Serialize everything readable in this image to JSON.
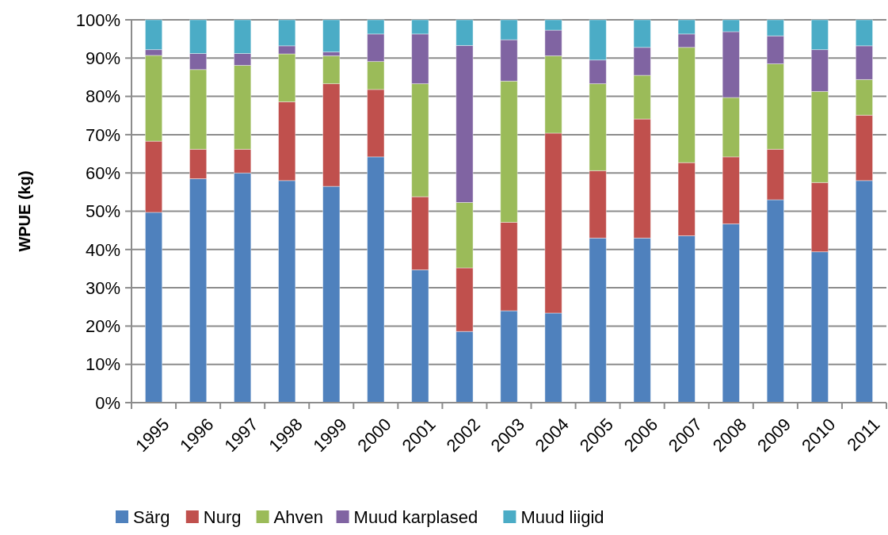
{
  "chart_data": {
    "type": "bar",
    "stacked": true,
    "ylabel": "WPUE (kg)",
    "categories": [
      "1995",
      "1996",
      "1997",
      "1998",
      "1999",
      "2000",
      "2001",
      "2002",
      "2003",
      "2004",
      "2005",
      "2006",
      "2007",
      "2008",
      "2009",
      "2010",
      "2011"
    ],
    "ylim": [
      0,
      100
    ],
    "yticks": [
      {
        "value": 0,
        "label": "0%"
      },
      {
        "value": 10,
        "label": "10%"
      },
      {
        "value": 20,
        "label": "20%"
      },
      {
        "value": 30,
        "label": "30%"
      },
      {
        "value": 40,
        "label": "40%"
      },
      {
        "value": 50,
        "label": "50%"
      },
      {
        "value": 60,
        "label": "60%"
      },
      {
        "value": 70,
        "label": "70%"
      },
      {
        "value": 80,
        "label": "80%"
      },
      {
        "value": 90,
        "label": "90%"
      },
      {
        "value": 100,
        "label": "100%"
      }
    ],
    "grid": "y",
    "legend": "bottom",
    "series": [
      {
        "name": "Särg",
        "color": "#4f81bd",
        "values": [
          49.7,
          58.5,
          60,
          58,
          56.5,
          64.2,
          34.7,
          18.6,
          24,
          23.4,
          43,
          43,
          43.6,
          46.7,
          53,
          39.4,
          58
        ]
      },
      {
        "name": "Nurg",
        "color": "#c0504d",
        "values": [
          18.6,
          7.7,
          6.2,
          20.6,
          26.8,
          17.6,
          19.1,
          16.6,
          23.1,
          47,
          17.6,
          31.1,
          19.1,
          17.5,
          13.2,
          18.1,
          17.1
        ]
      },
      {
        "name": "Ahven",
        "color": "#9bbb59",
        "values": [
          22.4,
          20.8,
          21.9,
          12.5,
          7.3,
          7.3,
          29.5,
          17.1,
          36.9,
          20.2,
          22.7,
          11.4,
          30.1,
          15.5,
          22.3,
          23.8,
          9.3
        ]
      },
      {
        "name": "Muud karplased",
        "color": "#8064a2",
        "values": [
          1.5,
          4.2,
          3.1,
          2.1,
          1,
          7.2,
          13,
          41,
          10.8,
          6.7,
          6.2,
          7.3,
          3.5,
          17.2,
          7.3,
          10.9,
          8.8
        ]
      },
      {
        "name": "Muud liigid",
        "color": "#4bacc6",
        "values": [
          7.8,
          8.8,
          8.8,
          6.8,
          8.4,
          3.7,
          3.7,
          6.7,
          5.2,
          2.7,
          10.5,
          7.2,
          3.7,
          3.1,
          4.2,
          7.8,
          6.8
        ]
      }
    ]
  }
}
